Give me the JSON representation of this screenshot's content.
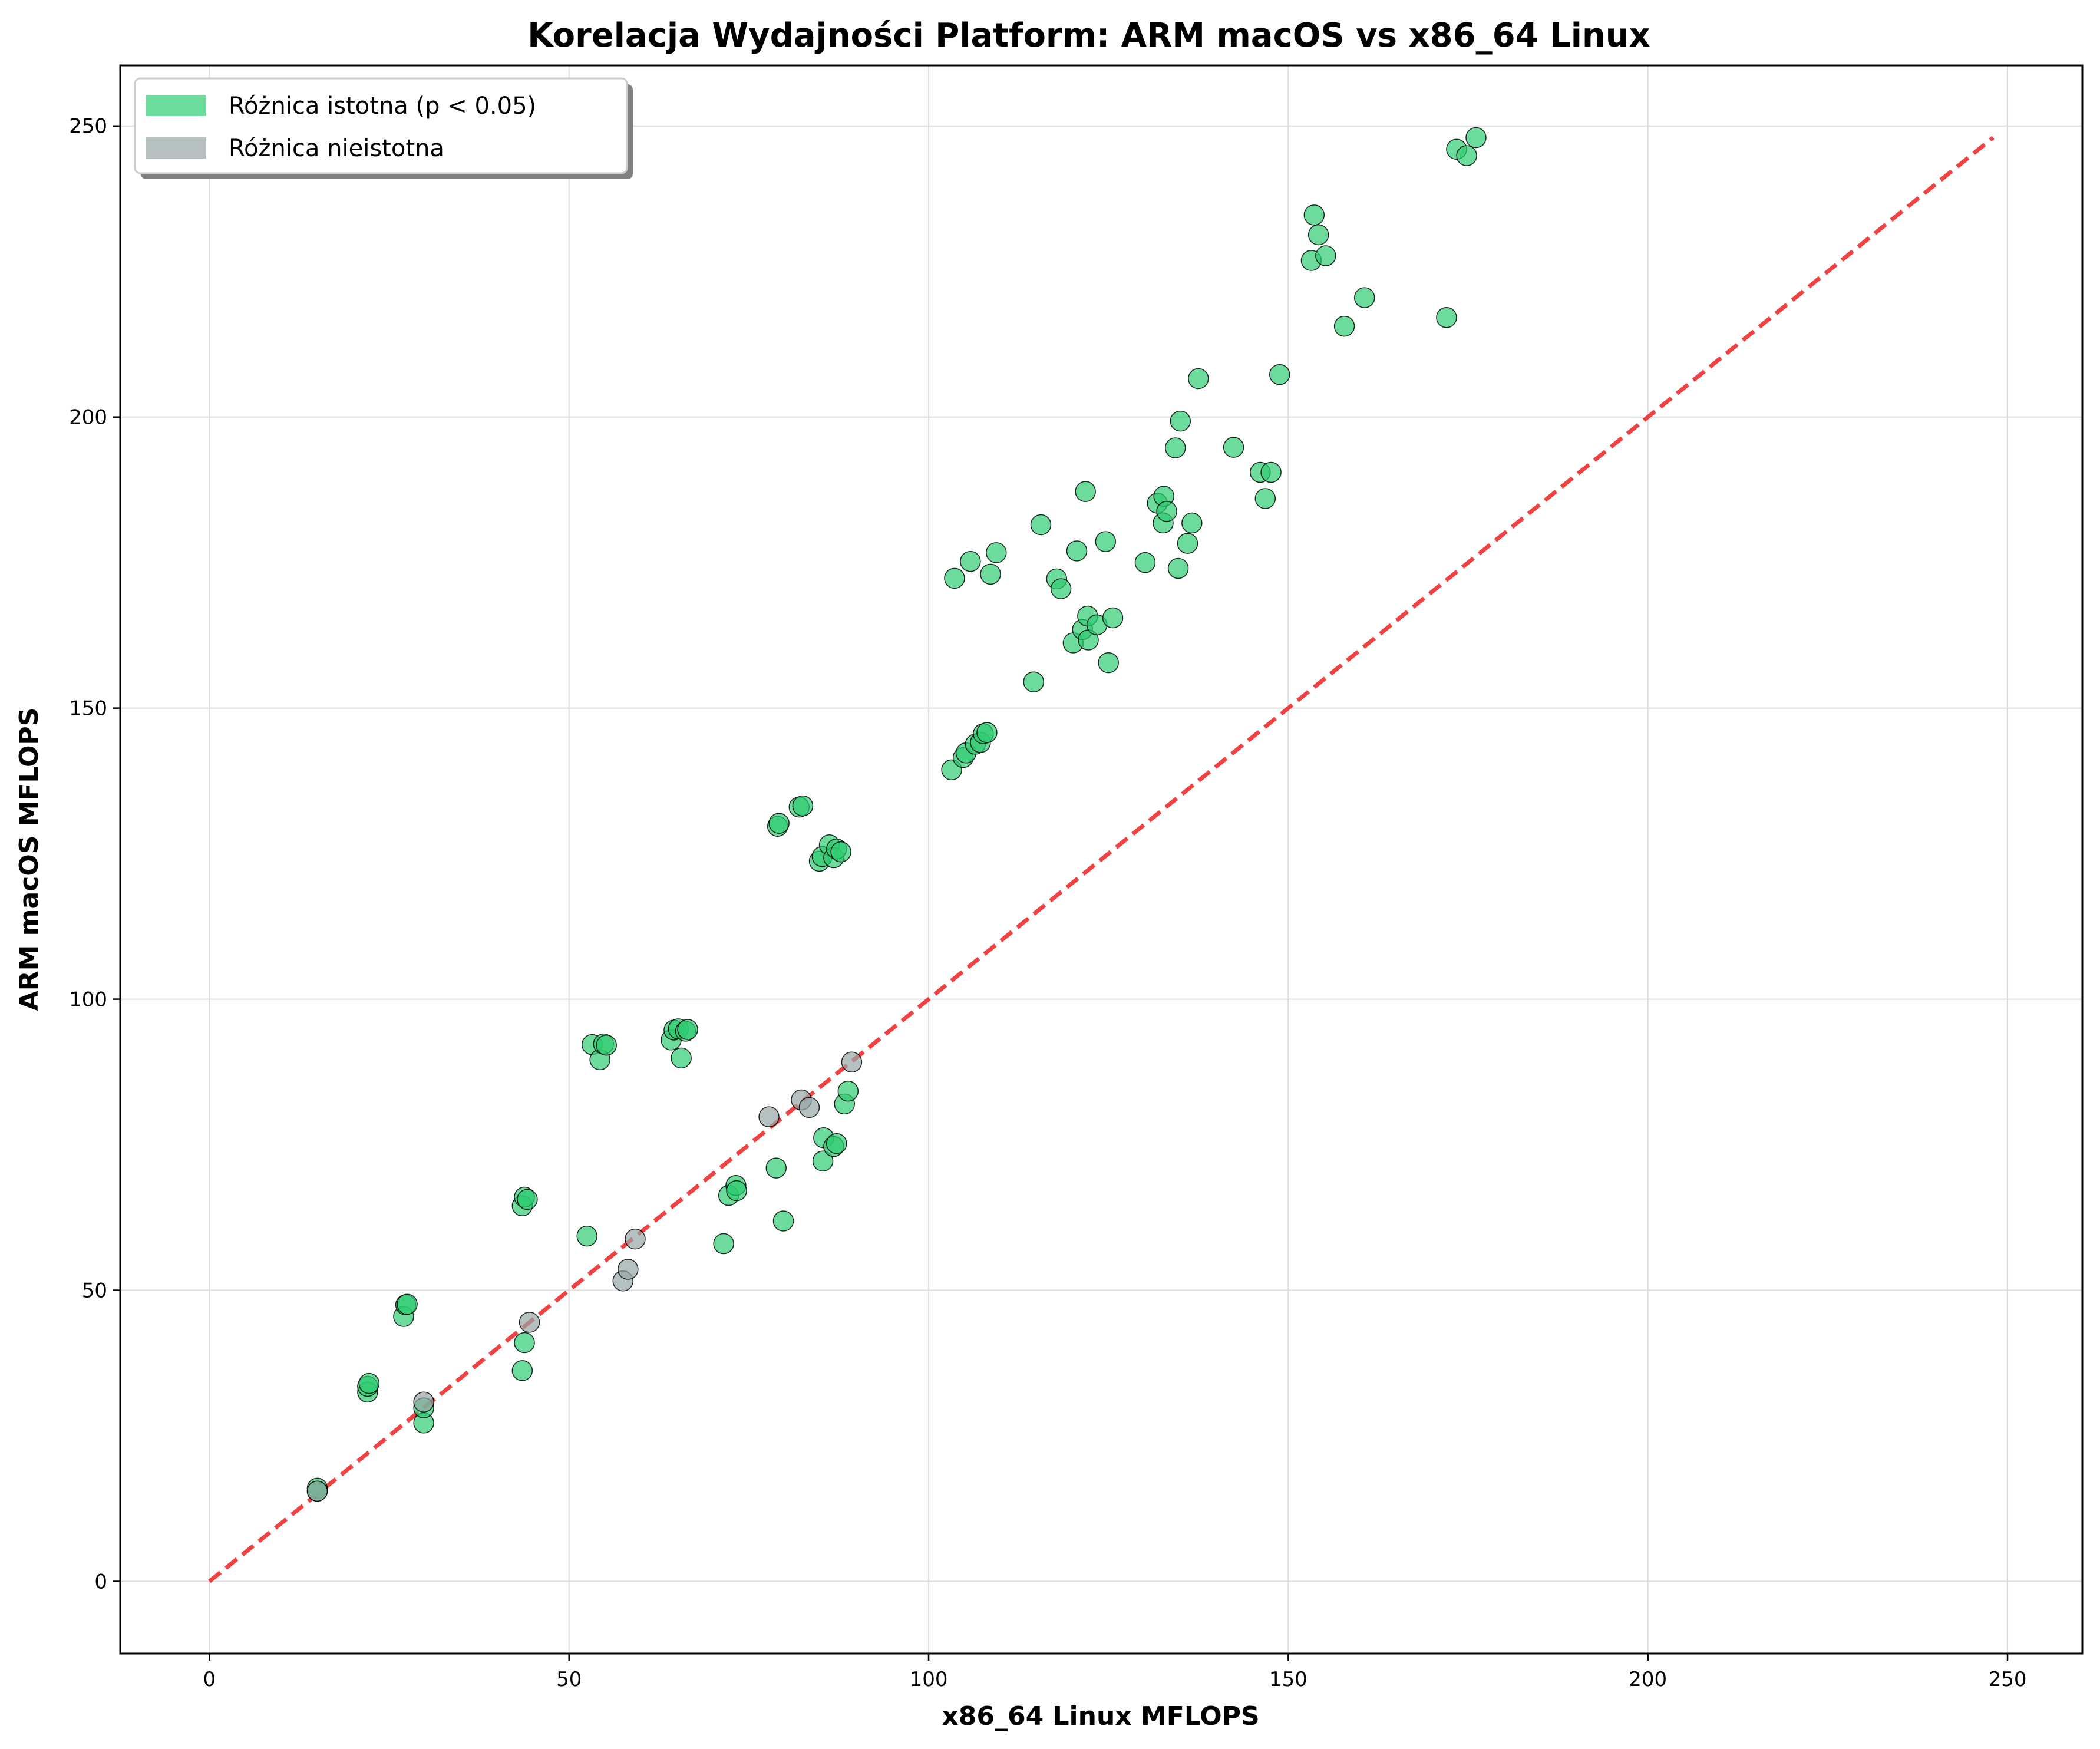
{
  "chart_data": {
    "type": "scatter",
    "title": "Korelacja Wydajności Platform: ARM macOS vs x86_64 Linux",
    "xlabel": "x86_64 Linux MFLOPS",
    "ylabel": "ARM macOS MFLOPS",
    "xlim": [
      -12.4,
      260.4
    ],
    "ylim": [
      -12.4,
      260.4
    ],
    "xticks": [
      0,
      50,
      100,
      150,
      200,
      250
    ],
    "yticks": [
      0,
      50,
      100,
      150,
      200,
      250
    ],
    "grid": true,
    "legend_position": "top-left",
    "reference_line": {
      "x": [
        0,
        248
      ],
      "y": [
        0,
        248
      ],
      "color": "#ee2222",
      "style": "dashed"
    },
    "series": [
      {
        "name": "Różnica istotna (p < 0.05)",
        "color": "#2ecc71",
        "points": [
          [
            15,
            16
          ],
          [
            15,
            15.5
          ],
          [
            22,
            32.5
          ],
          [
            22,
            33.5
          ],
          [
            22.2,
            34
          ],
          [
            27,
            45.5
          ],
          [
            27.3,
            47.5
          ],
          [
            27.5,
            47.6
          ],
          [
            29.8,
            27.2
          ],
          [
            29.8,
            29.8
          ],
          [
            43.5,
            36.2
          ],
          [
            43.8,
            41
          ],
          [
            43.5,
            64.5
          ],
          [
            43.8,
            66
          ],
          [
            44.2,
            65.6
          ],
          [
            52.5,
            59.3
          ],
          [
            53.2,
            92.2
          ],
          [
            54.3,
            89.6
          ],
          [
            54.8,
            92.3
          ],
          [
            55.2,
            92.1
          ],
          [
            64.2,
            93
          ],
          [
            64.6,
            94.7
          ],
          [
            65.2,
            94.9
          ],
          [
            65.6,
            89.9
          ],
          [
            66.2,
            94.5
          ],
          [
            66.5,
            94.8
          ],
          [
            71.5,
            58
          ],
          [
            72.2,
            66.3
          ],
          [
            73.2,
            68
          ],
          [
            73.3,
            67.1
          ],
          [
            78.8,
            71
          ],
          [
            79,
            129.7
          ],
          [
            79.2,
            130.2
          ],
          [
            79.8,
            61.9
          ],
          [
            82,
            133
          ],
          [
            82.5,
            133.2
          ],
          [
            84.8,
            123.7
          ],
          [
            85.2,
            124.5
          ],
          [
            85.4,
            76.2
          ],
          [
            85.3,
            72.2
          ],
          [
            86.2,
            126.5
          ],
          [
            86.8,
            74.7
          ],
          [
            86.8,
            124.3
          ],
          [
            87.2,
            75.2
          ],
          [
            87.2,
            125.8
          ],
          [
            87.8,
            125.3
          ],
          [
            88.3,
            82
          ],
          [
            88.8,
            84.2
          ],
          [
            103.2,
            139.4
          ],
          [
            103.6,
            172.3
          ],
          [
            104.8,
            141.5
          ],
          [
            105.2,
            142.3
          ],
          [
            105.8,
            175.2
          ],
          [
            106.5,
            143.8
          ],
          [
            107.2,
            144.1
          ],
          [
            107.6,
            145.6
          ],
          [
            108.1,
            145.8
          ],
          [
            108.6,
            173
          ],
          [
            109.4,
            176.7
          ],
          [
            114.6,
            154.5
          ],
          [
            115.6,
            181.5
          ],
          [
            117.8,
            172.2
          ],
          [
            118.4,
            170.5
          ],
          [
            120.1,
            161.2
          ],
          [
            120.6,
            177
          ],
          [
            121.4,
            163.5
          ],
          [
            121.8,
            187.2
          ],
          [
            122.1,
            165.8
          ],
          [
            122.2,
            161.7
          ],
          [
            123.4,
            164.3
          ],
          [
            124.6,
            178.6
          ],
          [
            125,
            157.8
          ],
          [
            125.6,
            165.5
          ],
          [
            130.1,
            175
          ],
          [
            131.8,
            185.2
          ],
          [
            132.6,
            181.8
          ],
          [
            132.7,
            186.4
          ],
          [
            133.1,
            183.8
          ],
          [
            134.3,
            194.7
          ],
          [
            134.7,
            174
          ],
          [
            135,
            199.3
          ],
          [
            136,
            178.3
          ],
          [
            136.6,
            181.8
          ],
          [
            137.5,
            206.6
          ],
          [
            142.4,
            194.8
          ],
          [
            146.1,
            190.5
          ],
          [
            146.8,
            186
          ],
          [
            147.6,
            190.5
          ],
          [
            148.8,
            207.3
          ],
          [
            153.2,
            226.9
          ],
          [
            153.6,
            234.7
          ],
          [
            154.2,
            231.3
          ],
          [
            155.2,
            227.7
          ],
          [
            157.8,
            215.6
          ],
          [
            160.6,
            220.5
          ],
          [
            172,
            217.1
          ],
          [
            173.4,
            246
          ],
          [
            174.8,
            244.9
          ],
          [
            176.1,
            248
          ]
        ]
      },
      {
        "name": "Różnica nieistotna",
        "color": "#95a5a6",
        "points": [
          [
            15,
            15.5
          ],
          [
            29.8,
            30.8
          ],
          [
            44.5,
            44.5
          ],
          [
            57.5,
            51.6
          ],
          [
            58.2,
            53.6
          ],
          [
            59.2,
            58.8
          ],
          [
            77.8,
            79.8
          ],
          [
            82.3,
            82.7
          ],
          [
            83.4,
            81.4
          ],
          [
            89.3,
            89.2
          ]
        ]
      }
    ]
  }
}
